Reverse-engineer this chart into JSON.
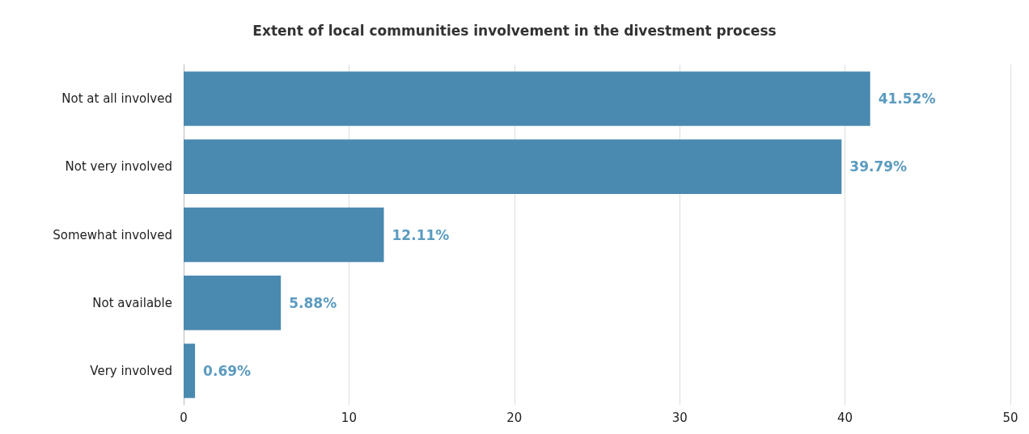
{
  "chart_data": {
    "type": "bar",
    "orientation": "horizontal",
    "title": "Extent of local communities involvement in the divestment process",
    "categories": [
      "Not at all involved",
      "Not very involved",
      "Somewhat involved",
      "Not available",
      "Very involved"
    ],
    "values": [
      41.52,
      39.79,
      12.11,
      5.88,
      0.69
    ],
    "value_labels": [
      "41.52%",
      "39.79%",
      "12.11%",
      "5.88%",
      "0.69%"
    ],
    "color": "#4a89b0",
    "xlim": [
      0,
      50
    ],
    "xticks": [
      0,
      10,
      20,
      30,
      40,
      50
    ],
    "grid": "x"
  }
}
